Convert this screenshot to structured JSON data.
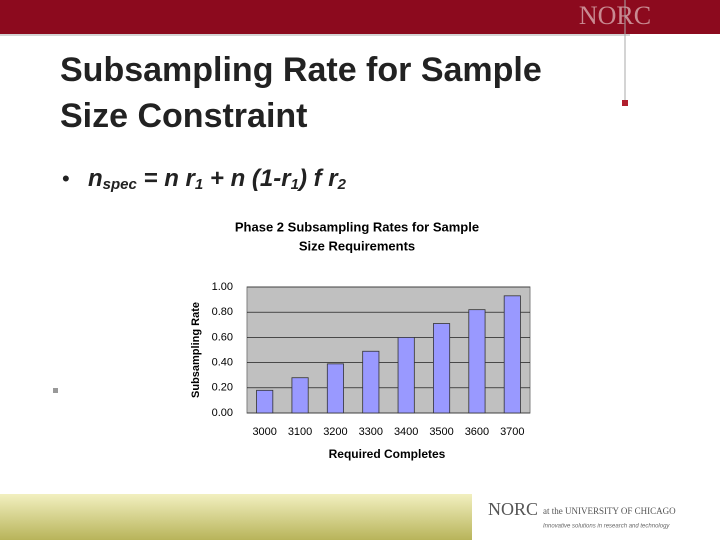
{
  "slide_title": [
    "Subsampling Rate for Sample",
    "Size Constraint"
  ],
  "bullet": "•",
  "formula": [
    "n",
    "spec",
    " = n r",
    "1",
    " + n (1-r",
    "1",
    ") f r",
    "2"
  ],
  "header_logo": "NORC",
  "footer_logo": {
    "name": "NORC",
    "affiliation": "at the UNIVERSITY OF CHICAGO",
    "tagline": "Innovative solutions in research and technology"
  },
  "chart_data": {
    "type": "bar",
    "title": [
      "Phase 2 Subsampling Rates for Sample",
      "Size Requirements"
    ],
    "x_label": "Required Completes",
    "y_label": "Subsampling Rate",
    "categories": [
      "3000",
      "3100",
      "3200",
      "3300",
      "3400",
      "3500",
      "3600",
      "3700"
    ],
    "values": [
      0.18,
      0.28,
      0.39,
      0.49,
      0.6,
      0.71,
      0.82,
      0.93
    ],
    "color": "#9999ff",
    "ylim": [
      0,
      1
    ],
    "yticks": [
      {
        "value": 0,
        "label": "0.00"
      },
      {
        "value": 0.2,
        "label": "0.20"
      },
      {
        "value": 0.4,
        "label": "0.40"
      },
      {
        "value": 0.6,
        "label": "0.60"
      },
      {
        "value": 0.8,
        "label": "0.80"
      },
      {
        "value": 1,
        "label": "1.00"
      }
    ],
    "grid": true
  }
}
